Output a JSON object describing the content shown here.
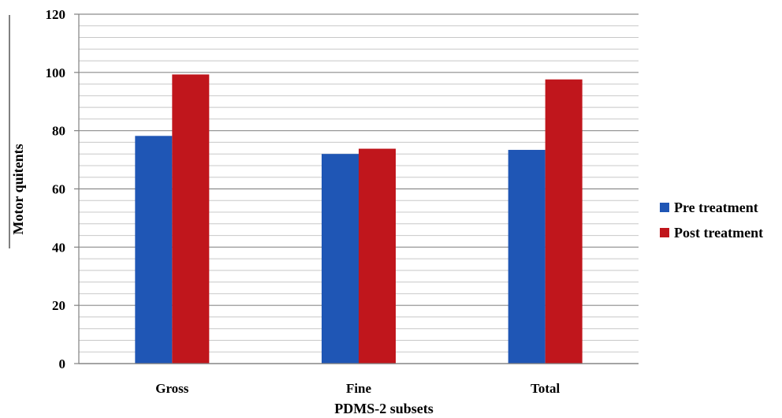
{
  "chart_data": {
    "type": "bar",
    "categories": [
      "Gross",
      "Fine",
      "Total"
    ],
    "series": [
      {
        "name": "Pre treatment",
        "values": [
          78.2,
          72.0,
          73.4
        ],
        "color": "#1f56b5"
      },
      {
        "name": "Post treatment",
        "values": [
          99.3,
          73.8,
          97.6
        ],
        "color": "#c0161c"
      }
    ],
    "xlabel": "PDMS-2 subsets",
    "ylabel": "Motor quitents",
    "ylim": [
      0,
      120
    ],
    "yticks": [
      "0",
      "20",
      "40",
      "60",
      "80",
      "100",
      "120"
    ],
    "grid": true,
    "legend_position": "right"
  }
}
